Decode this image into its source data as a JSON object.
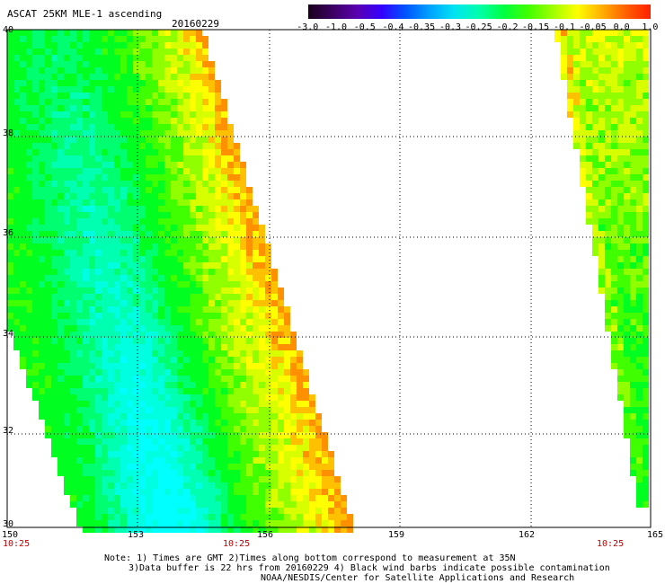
{
  "header": {
    "title": "ASCAT 25KM MLE-1 ascending",
    "date": "20160229"
  },
  "colorbar": {
    "colors": [
      "#1a001a",
      "#3b0061",
      "#5a00b0",
      "#3300ff",
      "#0055ff",
      "#00a5ff",
      "#00e5f0",
      "#00ffaa",
      "#00ff40",
      "#40ff00",
      "#a0ff00",
      "#ffff00",
      "#ffb000",
      "#ff6000",
      "#ff2000"
    ],
    "ticks": [
      "-3.0",
      "-1.0",
      "-0.5",
      "-0.4",
      "-0.35",
      "-0.3",
      "-0.25",
      "-0.2",
      "-0.15",
      "-0.1",
      "-0.05",
      "0.0",
      "1.0"
    ]
  },
  "axes": {
    "lat_labels": [
      "40",
      "38",
      "36",
      "34",
      "32",
      "30"
    ],
    "lon_labels": [
      "150",
      "153",
      "156",
      "159",
      "162",
      "165"
    ],
    "lon_range": [
      150,
      165
    ],
    "lat_range": [
      30,
      40
    ]
  },
  "pass_times": [
    "10:25",
    "10:25",
    "10:25"
  ],
  "notes": {
    "line1": "Note: 1) Times are GMT 2)Times along bottom correspond to measurement at 35N",
    "line2": "3)Data buffer is 22 hrs from 20160229 4) Black wind barbs indicate possible contamination",
    "line3": "NOAA/NESDIS/Center for Satellite Applications and Research"
  }
}
